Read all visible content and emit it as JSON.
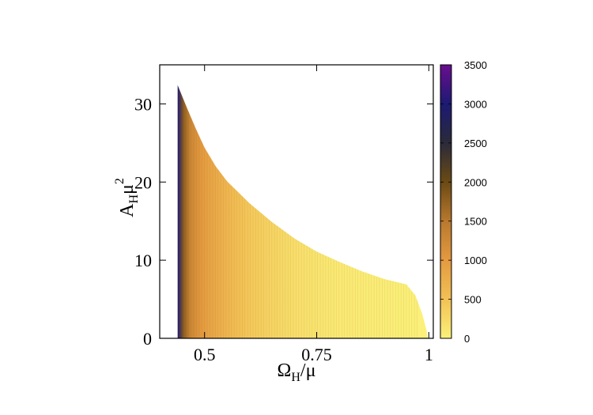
{
  "chart_data": {
    "type": "heatmap",
    "title": "",
    "xlabel": "Ω_H/μ",
    "ylabel": "A_H μ^2",
    "xlabel_parts": {
      "main": "Ω",
      "sub": "H",
      "after": "/μ"
    },
    "ylabel_parts": {
      "main": "A",
      "sub": "H",
      "after": "μ",
      "sup": "2"
    },
    "xlim": [
      0.4,
      1.01
    ],
    "ylim": [
      0,
      35
    ],
    "x_ticks": [
      {
        "value": 0.5,
        "label": "0.5"
      },
      {
        "value": 0.75,
        "label": "0.75"
      },
      {
        "value": 1,
        "label": "1"
      }
    ],
    "y_ticks": [
      {
        "value": 0,
        "label": "0"
      },
      {
        "value": 10,
        "label": "10"
      },
      {
        "value": 20,
        "label": "20"
      },
      {
        "value": 30,
        "label": "30"
      }
    ],
    "colorbar": {
      "range": [
        0,
        3500
      ],
      "ticks": [
        {
          "value": 0,
          "label": "0"
        },
        {
          "value": 500,
          "label": "500"
        },
        {
          "value": 1000,
          "label": "1000"
        },
        {
          "value": 1500,
          "label": "1500"
        },
        {
          "value": 2000,
          "label": "2000"
        },
        {
          "value": 2500,
          "label": "2500"
        },
        {
          "value": 3000,
          "label": "3000"
        },
        {
          "value": 3500,
          "label": "3500"
        }
      ],
      "palette": [
        {
          "value": 0,
          "color": "#fbf17a"
        },
        {
          "value": 500,
          "color": "#f2c155"
        },
        {
          "value": 1000,
          "color": "#e49a40"
        },
        {
          "value": 1500,
          "color": "#b8782e"
        },
        {
          "value": 2000,
          "color": "#6b4a14"
        },
        {
          "value": 2500,
          "color": "#2a2a3a"
        },
        {
          "value": 3000,
          "color": "#1c1a72"
        },
        {
          "value": 3500,
          "color": "#6a0e8f"
        }
      ]
    },
    "boundary_upper": [
      {
        "x": 0.44,
        "y": 32.4
      },
      {
        "x": 0.46,
        "y": 29.6
      },
      {
        "x": 0.48,
        "y": 26.9
      },
      {
        "x": 0.5,
        "y": 24.4
      },
      {
        "x": 0.525,
        "y": 22.0
      },
      {
        "x": 0.55,
        "y": 20.1
      },
      {
        "x": 0.575,
        "y": 18.7
      },
      {
        "x": 0.6,
        "y": 17.3
      },
      {
        "x": 0.65,
        "y": 14.9
      },
      {
        "x": 0.7,
        "y": 12.8
      },
      {
        "x": 0.75,
        "y": 11.1
      },
      {
        "x": 0.8,
        "y": 9.8
      },
      {
        "x": 0.85,
        "y": 8.6
      },
      {
        "x": 0.9,
        "y": 7.6
      },
      {
        "x": 0.95,
        "y": 6.9
      },
      {
        "x": 0.97,
        "y": 5.5
      },
      {
        "x": 0.985,
        "y": 3.2
      },
      {
        "x": 0.995,
        "y": 1.0
      },
      {
        "x": 0.998,
        "y": 0
      }
    ],
    "x_min_edge": 0.44,
    "value_profile": [
      {
        "x": 0.44,
        "value": 3000
      },
      {
        "x": 0.445,
        "value": 2300
      },
      {
        "x": 0.455,
        "value": 1700
      },
      {
        "x": 0.47,
        "value": 1250
      },
      {
        "x": 0.5,
        "value": 950
      },
      {
        "x": 0.55,
        "value": 650
      },
      {
        "x": 0.6,
        "value": 430
      },
      {
        "x": 0.7,
        "value": 200
      },
      {
        "x": 0.8,
        "value": 80
      },
      {
        "x": 1.0,
        "value": 10
      }
    ],
    "grid": false,
    "legend": "colorbar-right"
  }
}
